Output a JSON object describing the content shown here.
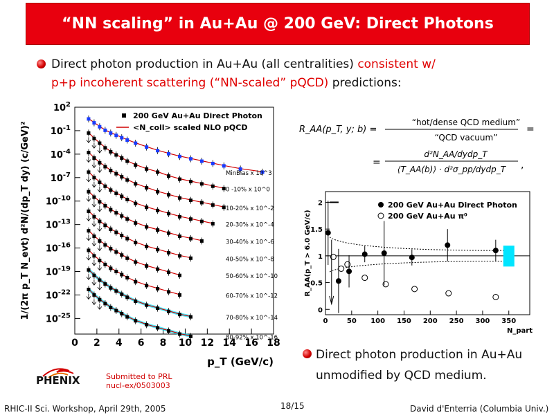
{
  "slide": {
    "title": "“NN scaling” in Au+Au @ 200 GeV: Direct Photons",
    "intro_line1_black": "Direct photon production in Au+Au (all centralities) ",
    "intro_line1_red": "consistent w/",
    "intro_line2_red": "p+p incoherent scattering (“NN-scaled” pQCD)",
    "intro_line2_black": " predictions:",
    "conclusion_line1": "Direct photon production in Au+Au",
    "conclusion_line2": "unmodified by QCD medium.",
    "logo_text": "PHENIX",
    "submitted_line1": "Submitted to PRL",
    "submitted_line2": "nucl-ex/0503003",
    "footer_left": "RHIC-II Sci. Workshop, April 29th, 2005",
    "footer_mid": "18/15",
    "footer_right": "David d'Enterria (Columbia Univ.)",
    "formula_raa": "R_AA(p_T, y; b) =",
    "formula_num": "“hot/dense QCD medium”",
    "formula_den": "“QCD vacuum”",
    "formula_eq": "=",
    "formula_num2": "d²N_AA/dydp_T",
    "formula_den2": "⟨T_AA(b)⟩ · d²σ_pp/dydp_T",
    "formula_comma": ","
  },
  "colors": {
    "title_bg": "#e8000e",
    "accent_red": "#e00000",
    "cyan_band": "#00e5ff"
  },
  "chart_data": [
    {
      "type": "scatter",
      "title": "",
      "xlabel": "p_T (GeV/c)",
      "ylabel": "1/(2π p_T N_evt) d²N/(dp_T dy) (c/GeV)²",
      "xlim": [
        0,
        18
      ],
      "ylim_log10": [
        -27,
        2
      ],
      "log_y": true,
      "x_ticks": [
        "0",
        "2",
        "4",
        "6",
        "8",
        "10",
        "12",
        "14",
        "16",
        "18"
      ],
      "y_ticks": [
        "10^2",
        "10^-1",
        "10^-4",
        "10^-7",
        "10^-10",
        "10^-13",
        "10^-16",
        "10^-19",
        "10^-22",
        "10^-25"
      ],
      "legend": [
        "200 GeV Au+Au Direct Photon",
        "<N_coll> scaled NLO pQCD"
      ],
      "legend_position": "top-right",
      "series": [
        {
          "name": "MinBias x 10^3",
          "pt": [
            1.25,
            1.75,
            2.25,
            2.75,
            3.25,
            3.75,
            4.25,
            4.75,
            5.5,
            6.5,
            7.5,
            8.5,
            9.5,
            10.5,
            11.5,
            12.5,
            13.5,
            15,
            17
          ],
          "log10y": [
            0.5,
            0.0,
            -0.5,
            -0.95,
            -1.3,
            -1.6,
            -1.9,
            -2.2,
            -2.6,
            -3.1,
            -3.55,
            -3.95,
            -4.3,
            -4.6,
            -4.9,
            -5.2,
            -5.5,
            -5.9,
            -6.3
          ]
        },
        {
          "name": "0 -10%   x 10^0",
          "pt": [
            1.25,
            1.75,
            2.25,
            2.75,
            3.25,
            3.75,
            4.25,
            4.75,
            5.5,
            6.5,
            7.5,
            8.5,
            9.5,
            10.5,
            11.5,
            12.5,
            13.5
          ],
          "log10y": [
            -1.3,
            -2.0,
            -2.6,
            -3.2,
            -3.7,
            -4.1,
            -4.5,
            -4.9,
            -5.4,
            -5.9,
            -6.3,
            -6.8,
            -7.2,
            -7.5,
            -7.8,
            -8.1,
            -8.4
          ]
        },
        {
          "name": "10-20%   x 10^-2",
          "pt": [
            1.25,
            1.75,
            2.25,
            2.75,
            3.25,
            3.75,
            4.25,
            4.75,
            5.5,
            6.5,
            7.5,
            8.5,
            9.5,
            10.5,
            11.5,
            12.5,
            13.5
          ],
          "log10y": [
            -3.8,
            -4.5,
            -5.1,
            -5.6,
            -6.1,
            -6.5,
            -6.9,
            -7.3,
            -7.8,
            -8.3,
            -8.8,
            -9.2,
            -9.6,
            -9.9,
            -10.2,
            -10.5,
            -10.8
          ]
        },
        {
          "name": "20-30%   x 10^-4",
          "pt": [
            1.25,
            1.75,
            2.25,
            2.75,
            3.25,
            3.75,
            4.25,
            4.75,
            5.5,
            6.5,
            7.5,
            8.5,
            9.5,
            10.5,
            11.5,
            12.5
          ],
          "log10y": [
            -6.3,
            -7.0,
            -7.6,
            -8.1,
            -8.6,
            -9.0,
            -9.4,
            -9.8,
            -10.3,
            -10.8,
            -11.2,
            -11.6,
            -12.0,
            -12.3,
            -12.6,
            -12.9
          ]
        },
        {
          "name": "30-40%   x 10^-6",
          "pt": [
            1.25,
            1.75,
            2.25,
            2.75,
            3.25,
            3.75,
            4.25,
            4.75,
            5.5,
            6.5,
            7.5,
            8.5,
            9.5,
            10.5,
            11.5
          ],
          "log10y": [
            -8.8,
            -9.5,
            -10.1,
            -10.6,
            -11.1,
            -11.5,
            -11.9,
            -12.3,
            -12.8,
            -13.3,
            -13.7,
            -14.1,
            -14.5,
            -14.8,
            -15.1
          ]
        },
        {
          "name": "40-50%   x 10^-8",
          "pt": [
            1.25,
            1.75,
            2.25,
            2.75,
            3.25,
            3.75,
            4.25,
            4.75,
            5.5,
            6.5,
            7.5,
            8.5,
            9.5,
            10.5
          ],
          "log10y": [
            -11.3,
            -12.0,
            -12.6,
            -13.1,
            -13.6,
            -14.0,
            -14.4,
            -14.8,
            -15.3,
            -15.8,
            -16.2,
            -16.6,
            -17.0,
            -17.3
          ]
        },
        {
          "name": "50-60%   x 10^-10",
          "pt": [
            1.25,
            1.75,
            2.25,
            2.75,
            3.25,
            3.75,
            4.25,
            4.75,
            5.5,
            6.5,
            7.5,
            8.5,
            9.5
          ],
          "log10y": [
            -13.8,
            -14.5,
            -15.1,
            -15.6,
            -16.1,
            -16.5,
            -16.9,
            -17.3,
            -17.8,
            -18.3,
            -18.7,
            -19.1,
            -19.5
          ]
        },
        {
          "name": "60-70%   x 10^-12",
          "pt": [
            1.25,
            1.75,
            2.25,
            2.75,
            3.25,
            3.75,
            4.25,
            4.75,
            5.5,
            6.5,
            7.5,
            8.5,
            9.5
          ],
          "log10y": [
            -16.3,
            -17.0,
            -17.6,
            -18.1,
            -18.6,
            -19.0,
            -19.4,
            -19.8,
            -20.3,
            -20.8,
            -21.2,
            -21.6,
            -22.0
          ]
        },
        {
          "name": "70-80%   x 10^-14",
          "pt": [
            1.25,
            1.75,
            2.25,
            2.75,
            3.25,
            3.75,
            4.25,
            4.75,
            5.5,
            6.5,
            7.5,
            8.5,
            9.5,
            10.5
          ],
          "log10y": [
            -18.8,
            -19.5,
            -20.1,
            -20.6,
            -21.1,
            -21.5,
            -21.9,
            -22.3,
            -22.8,
            -23.3,
            -23.7,
            -24.1,
            -24.5,
            -24.8
          ]
        },
        {
          "name": "80-92%   x 10^-16",
          "pt": [
            1.25,
            1.75,
            2.25,
            2.75,
            3.25,
            3.75,
            4.25,
            4.75,
            5.5,
            6.5,
            7.5,
            8.5,
            9.5,
            10.5
          ],
          "log10y": [
            -21.3,
            -22.0,
            -22.6,
            -23.1,
            -23.6,
            -24.0,
            -24.4,
            -24.8,
            -25.3,
            -25.8,
            -26.2,
            -26.6,
            -27.0,
            -27.3
          ]
        }
      ]
    },
    {
      "type": "scatter",
      "title": "",
      "xlabel": "N_part",
      "ylabel": "R_AA(p_T > 6.0 GeV/c)",
      "xlim": [
        0,
        390
      ],
      "ylim": [
        -0.1,
        2.2
      ],
      "x_ticks": [
        "0",
        "50",
        "100",
        "150",
        "200",
        "250",
        "300",
        "350"
      ],
      "y_ticks": [
        "0",
        "0.5",
        "1",
        "1.5",
        "2"
      ],
      "legend": [
        "200 GeV Au+Au Direct Photon",
        "200 GeV Au+Au π⁰"
      ],
      "legend_position": "top-right",
      "series": [
        {
          "name": "200 GeV Au+Au Direct Photon",
          "x": [
            5,
            25,
            45,
            75,
            112,
            165,
            233,
            325
          ],
          "y": [
            1.43,
            0.53,
            0.71,
            1.03,
            1.05,
            0.97,
            1.2,
            1.1
          ],
          "yerr": [
            0.6,
            0.6,
            0.3,
            0.15,
            0.6,
            0.15,
            0.3,
            0.2
          ]
        },
        {
          "name": "200 GeV Au+Au π⁰",
          "x": [
            15,
            30,
            42,
            75,
            115,
            170,
            235,
            325
          ],
          "y": [
            0.98,
            0.76,
            0.84,
            0.59,
            0.47,
            0.38,
            0.3,
            0.23
          ]
        }
      ]
    }
  ]
}
